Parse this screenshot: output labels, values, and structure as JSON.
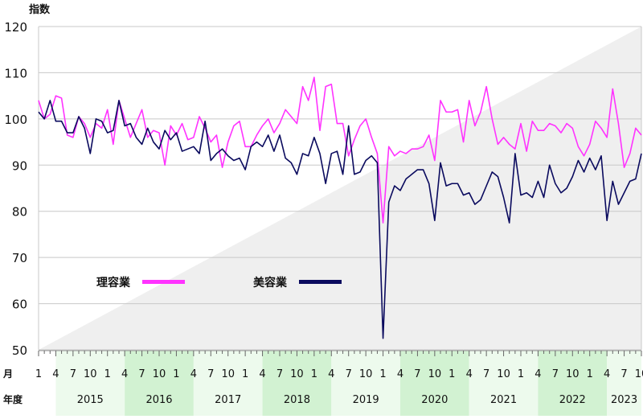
{
  "chart_data": {
    "type": "line",
    "title": "",
    "ylabel": "指数",
    "ylim": [
      50,
      120
    ],
    "yticks": [
      50,
      60,
      70,
      80,
      90,
      100,
      110,
      120
    ],
    "grid": true,
    "month_row_label": "月",
    "year_row_label": "年度",
    "month_ticks": [
      "1",
      "4",
      "7",
      "10"
    ],
    "fiscal_years": [
      "2015",
      "2016",
      "2017",
      "2018",
      "2019",
      "2020",
      "2021",
      "2022",
      "2023"
    ],
    "shaded_years": [
      "2016",
      "2018",
      "2020",
      "2022"
    ],
    "x_start": "2015-01",
    "x_end": "2024-01",
    "legend_position": "center-left",
    "series": [
      {
        "name": "理容業",
        "color": "#ff33ff",
        "values": [
          104,
          100,
          101,
          105,
          104.5,
          96.5,
          96,
          100.5,
          99,
          96,
          99,
          98,
          102,
          94.5,
          104,
          100,
          96,
          99,
          102,
          96,
          97.5,
          97,
          90,
          98.5,
          96.5,
          99,
          95.5,
          96,
          100.5,
          98,
          95,
          96.5,
          89.5,
          95,
          98.5,
          99.5,
          94,
          94,
          96.5,
          98.5,
          100,
          97,
          99,
          102,
          100.5,
          99,
          107,
          104,
          109,
          97.5,
          107,
          107.5,
          99,
          99,
          92,
          95.5,
          98.5,
          100,
          96,
          92.5,
          77.5,
          94,
          92,
          93,
          92.5,
          93.5,
          93.5,
          94,
          96.5,
          91,
          104,
          101.5,
          101.5,
          102,
          95,
          104,
          98.5,
          101.5,
          107,
          100,
          94.5,
          96,
          94.5,
          93.5,
          99,
          93,
          99.5,
          97.5,
          97.5,
          99,
          98.5,
          97,
          99,
          98,
          94,
          92,
          94.5,
          99.5,
          98,
          96,
          106.5,
          99,
          89.5,
          92.5,
          98,
          96.5
        ]
      },
      {
        "name": "美容業",
        "color": "#0a0a5e",
        "values": [
          101.5,
          100,
          104,
          99.5,
          99.5,
          97,
          97,
          100.5,
          98,
          92.5,
          100,
          99.5,
          97,
          97.5,
          104,
          98.5,
          99,
          96,
          94.5,
          98,
          95,
          93.5,
          97.5,
          95.5,
          97,
          93,
          93.5,
          94,
          92.5,
          99.5,
          91,
          92.5,
          93.5,
          92,
          91,
          91.5,
          89,
          94,
          95,
          94,
          96.5,
          93,
          96.5,
          91.5,
          90.5,
          88,
          92.5,
          92,
          96,
          92.5,
          86,
          92.5,
          93,
          88,
          98.5,
          88,
          88.5,
          91,
          92,
          90.5,
          52.5,
          82,
          85.5,
          84.5,
          87,
          88,
          89,
          89,
          86,
          78,
          90.5,
          85.5,
          86,
          86,
          83.5,
          84,
          81.5,
          82.5,
          85.5,
          88.5,
          87.5,
          83,
          77.5,
          92.5,
          83.5,
          84,
          83,
          86.5,
          83,
          90,
          86,
          84,
          85,
          87.5,
          91,
          88.5,
          91.5,
          89,
          92,
          78,
          86.5,
          81.5,
          84,
          86.5,
          87,
          92.5
        ]
      }
    ]
  }
}
